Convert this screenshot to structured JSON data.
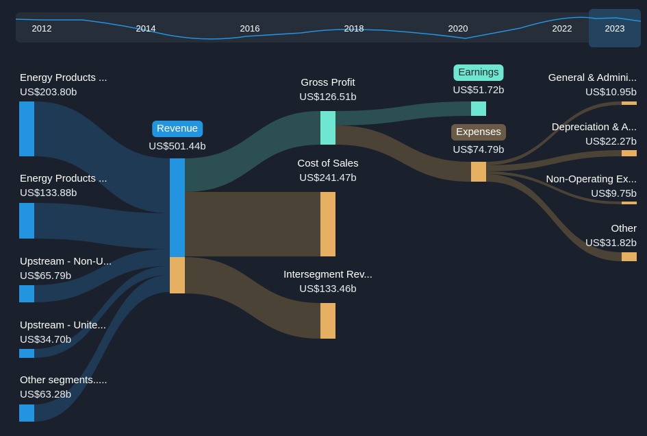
{
  "timeline": {
    "years": [
      "2012",
      "2014",
      "2016",
      "2018",
      "2020",
      "2022",
      "2023"
    ],
    "selected": "2023"
  },
  "colors": {
    "revenue": "#2394df",
    "profit": "#6ee6d0",
    "cost": "#e6b063",
    "link_revenue": "#1f3a55",
    "link_profit": "#2c4f52",
    "link_cost": "#4b4335",
    "expenses_pill": "#6b5a45"
  },
  "nodes": {
    "ep1": {
      "label": "Energy Products ...",
      "value": "US$203.80b"
    },
    "ep2": {
      "label": "Energy Products ...",
      "value": "US$133.88b"
    },
    "upn": {
      "label": "Upstream - Non-U...",
      "value": "US$65.79b"
    },
    "upu": {
      "label": "Upstream - Unite...",
      "value": "US$34.70b"
    },
    "oth": {
      "label": "Other segments.....",
      "value": "US$63.28b"
    },
    "rev": {
      "label": "Revenue",
      "value": "US$501.44b"
    },
    "gp": {
      "label": "Gross Profit",
      "value": "US$126.51b"
    },
    "cos": {
      "label": "Cost of Sales",
      "value": "US$241.47b"
    },
    "isr": {
      "label": "Intersegment Rev...",
      "value": "US$133.46b"
    },
    "earn": {
      "label": "Earnings",
      "value": "US$51.72b"
    },
    "exp": {
      "label": "Expenses",
      "value": "US$74.79b"
    },
    "ga": {
      "label": "General & Admini...",
      "value": "US$10.95b"
    },
    "dep": {
      "label": "Depreciation & A...",
      "value": "US$22.27b"
    },
    "nonop": {
      "label": "Non-Operating Ex...",
      "value": "US$9.75b"
    },
    "other": {
      "label": "Other",
      "value": "US$31.82b"
    }
  }
}
